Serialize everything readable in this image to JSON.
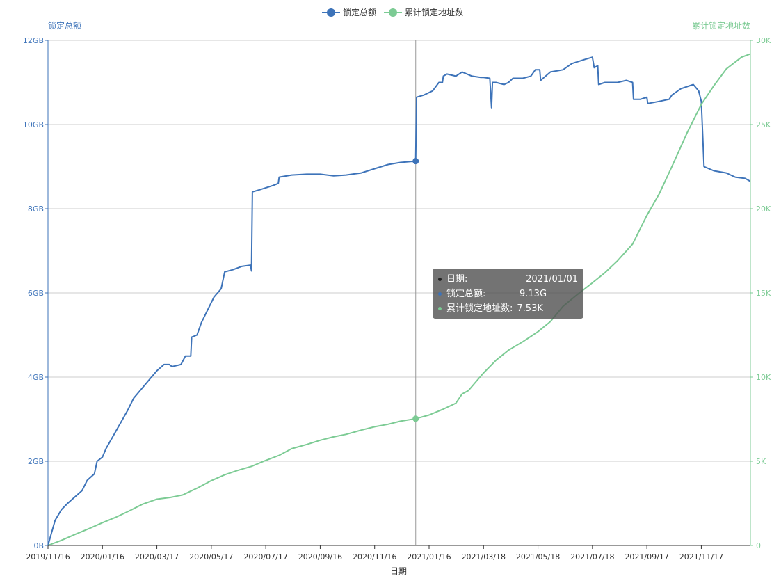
{
  "colors": {
    "series1": "#3d73b9",
    "series2": "#7ccb94",
    "grid": "#cccccc",
    "axis_left": "#3d73b9",
    "axis_right": "#7ccb94"
  },
  "legend": [
    {
      "name": "锁定总额",
      "color": "#3d73b9"
    },
    {
      "name": "累计锁定地址数",
      "color": "#7ccb94"
    }
  ],
  "tooltip": {
    "rows": [
      {
        "label": "日期:",
        "value": "2021/01/01",
        "dot_color": "#333333"
      },
      {
        "label": "锁定总额:",
        "value": "9.13G",
        "dot_color": "#3d73b9"
      },
      {
        "label": "累计锁定地址数:",
        "value": "7.53K",
        "dot_color": "#7ccb94"
      }
    ]
  },
  "chart_data": {
    "type": "line",
    "xlabel": "日期",
    "ylabel_left": "锁定总额",
    "ylabel_right": "累计锁定地址数",
    "x_ticks": [
      "2019/11/16",
      "2020/01/16",
      "2020/03/17",
      "2020/05/17",
      "2020/07/17",
      "2020/09/16",
      "2020/11/16",
      "2021/01/16",
      "2021/03/18",
      "2021/05/18",
      "2021/07/18",
      "2021/09/17",
      "2021/11/17"
    ],
    "x_range": [
      "2019/11/16",
      "2022/01/11"
    ],
    "y_left_ticks": [
      "0B",
      "2GB",
      "4GB",
      "6GB",
      "8GB",
      "10GB",
      "12GB"
    ],
    "y_left_range": [
      0,
      12
    ],
    "y_right_ticks": [
      "0",
      "5K",
      "10K",
      "15K",
      "20K",
      "25K",
      "30K"
    ],
    "y_right_range": [
      0,
      30000
    ],
    "grid": true,
    "legend_position": "top-center",
    "crosshair_date": "2021/01/01",
    "series": [
      {
        "name": "锁定总额",
        "axis": "left",
        "unit": "GB",
        "points": [
          [
            "2019/11/16",
            0.0
          ],
          [
            "2019/11/20",
            0.3
          ],
          [
            "2019/11/24",
            0.6
          ],
          [
            "2019/12/01",
            0.85
          ],
          [
            "2019/12/08",
            1.0
          ],
          [
            "2019/12/16",
            1.15
          ],
          [
            "2019/12/24",
            1.3
          ],
          [
            "2019/12/30",
            1.55
          ],
          [
            "2020/01/07",
            1.7
          ],
          [
            "2020/01/10",
            2.0
          ],
          [
            "2020/01/16",
            2.1
          ],
          [
            "2020/01/20",
            2.3
          ],
          [
            "2020/01/28",
            2.6
          ],
          [
            "2020/02/05",
            2.9
          ],
          [
            "2020/02/13",
            3.2
          ],
          [
            "2020/02/20",
            3.5
          ],
          [
            "2020/02/28",
            3.7
          ],
          [
            "2020/03/07",
            3.9
          ],
          [
            "2020/03/17",
            4.15
          ],
          [
            "2020/03/25",
            4.3
          ],
          [
            "2020/03/31",
            4.3
          ],
          [
            "2020/04/03",
            4.25
          ],
          [
            "2020/04/13",
            4.3
          ],
          [
            "2020/04/18",
            4.5
          ],
          [
            "2020/04/24",
            4.5
          ],
          [
            "2020/04/25",
            4.95
          ],
          [
            "2020/05/01",
            5.0
          ],
          [
            "2020/05/06",
            5.3
          ],
          [
            "2020/05/13",
            5.6
          ],
          [
            "2020/05/20",
            5.9
          ],
          [
            "2020/05/28",
            6.1
          ],
          [
            "2020/06/01",
            6.5
          ],
          [
            "2020/06/10",
            6.55
          ],
          [
            "2020/06/20",
            6.63
          ],
          [
            "2020/06/30",
            6.66
          ],
          [
            "2020/07/01",
            6.52
          ],
          [
            "2020/07/02",
            8.4
          ],
          [
            "2020/07/10",
            8.45
          ],
          [
            "2020/07/25",
            8.55
          ],
          [
            "2020/07/31",
            8.6
          ],
          [
            "2020/08/01",
            8.75
          ],
          [
            "2020/08/15",
            8.8
          ],
          [
            "2020/09/01",
            8.82
          ],
          [
            "2020/09/16",
            8.82
          ],
          [
            "2020/10/01",
            8.78
          ],
          [
            "2020/10/15",
            8.8
          ],
          [
            "2020/11/01",
            8.85
          ],
          [
            "2020/11/16",
            8.95
          ],
          [
            "2020/12/01",
            9.05
          ],
          [
            "2020/12/15",
            9.1
          ],
          [
            "2021/01/01",
            9.13
          ],
          [
            "2021/01/02",
            10.65
          ],
          [
            "2021/01/10",
            10.7
          ],
          [
            "2021/01/20",
            10.8
          ],
          [
            "2021/01/27",
            11.0
          ],
          [
            "2021/01/31",
            11.0
          ],
          [
            "2021/02/01",
            11.15
          ],
          [
            "2021/02/05",
            11.2
          ],
          [
            "2021/02/15",
            11.15
          ],
          [
            "2021/02/22",
            11.25
          ],
          [
            "2021/03/05",
            11.15
          ],
          [
            "2021/03/15",
            11.12
          ],
          [
            "2021/03/18",
            11.12
          ],
          [
            "2021/03/25",
            11.1
          ],
          [
            "2021/03/27",
            10.4
          ],
          [
            "2021/03/28",
            11.0
          ],
          [
            "2021/04/01",
            11.0
          ],
          [
            "2021/04/10",
            10.95
          ],
          [
            "2021/04/15",
            11.0
          ],
          [
            "2021/04/20",
            11.1
          ],
          [
            "2021/05/01",
            11.1
          ],
          [
            "2021/05/10",
            11.15
          ],
          [
            "2021/05/15",
            11.3
          ],
          [
            "2021/05/20",
            11.3
          ],
          [
            "2021/05/21",
            11.05
          ],
          [
            "2021/06/01",
            11.25
          ],
          [
            "2021/06/15",
            11.3
          ],
          [
            "2021/06/25",
            11.45
          ],
          [
            "2021/07/10",
            11.55
          ],
          [
            "2021/07/18",
            11.6
          ],
          [
            "2021/07/20",
            11.35
          ],
          [
            "2021/07/24",
            11.4
          ],
          [
            "2021/07/25",
            10.95
          ],
          [
            "2021/08/01",
            11.0
          ],
          [
            "2021/08/15",
            11.0
          ],
          [
            "2021/08/25",
            11.05
          ],
          [
            "2021/09/01",
            11.0
          ],
          [
            "2021/09/02",
            10.6
          ],
          [
            "2021/09/10",
            10.6
          ],
          [
            "2021/09/17",
            10.65
          ],
          [
            "2021/09/18",
            10.5
          ],
          [
            "2021/10/01",
            10.55
          ],
          [
            "2021/10/12",
            10.6
          ],
          [
            "2021/10/15",
            10.7
          ],
          [
            "2021/10/25",
            10.85
          ],
          [
            "2021/11/01",
            10.9
          ],
          [
            "2021/11/08",
            10.95
          ],
          [
            "2021/11/10",
            10.9
          ],
          [
            "2021/11/14",
            10.8
          ],
          [
            "2021/11/17",
            10.55
          ],
          [
            "2021/11/20",
            9.0
          ],
          [
            "2021/12/01",
            8.9
          ],
          [
            "2021/12/15",
            8.85
          ],
          [
            "2021/12/25",
            8.75
          ],
          [
            "2022/01/05",
            8.72
          ],
          [
            "2022/01/11",
            8.65
          ]
        ]
      },
      {
        "name": "累计锁定地址数",
        "axis": "right",
        "unit": "count",
        "points": [
          [
            "2019/11/16",
            0
          ],
          [
            "2019/12/01",
            300
          ],
          [
            "2019/12/16",
            650
          ],
          [
            "2020/01/01",
            1000
          ],
          [
            "2020/01/16",
            1350
          ],
          [
            "2020/02/01",
            1700
          ],
          [
            "2020/02/15",
            2050
          ],
          [
            "2020/03/01",
            2450
          ],
          [
            "2020/03/17",
            2750
          ],
          [
            "2020/04/01",
            2850
          ],
          [
            "2020/04/15",
            3000
          ],
          [
            "2020/05/01",
            3400
          ],
          [
            "2020/05/17",
            3850
          ],
          [
            "2020/06/01",
            4200
          ],
          [
            "2020/06/15",
            4450
          ],
          [
            "2020/07/01",
            4700
          ],
          [
            "2020/07/17",
            5050
          ],
          [
            "2020/08/01",
            5350
          ],
          [
            "2020/08/15",
            5750
          ],
          [
            "2020/09/01",
            6000
          ],
          [
            "2020/09/16",
            6250
          ],
          [
            "2020/10/01",
            6450
          ],
          [
            "2020/10/15",
            6600
          ],
          [
            "2020/11/01",
            6850
          ],
          [
            "2020/11/16",
            7050
          ],
          [
            "2020/12/01",
            7200
          ],
          [
            "2020/12/15",
            7380
          ],
          [
            "2021/01/01",
            7530
          ],
          [
            "2021/01/16",
            7750
          ],
          [
            "2021/02/01",
            8100
          ],
          [
            "2021/02/15",
            8450
          ],
          [
            "2021/02/22",
            9000
          ],
          [
            "2021/03/01",
            9200
          ],
          [
            "2021/03/18",
            10250
          ],
          [
            "2021/04/01",
            11000
          ],
          [
            "2021/04/15",
            11600
          ],
          [
            "2021/05/01",
            12100
          ],
          [
            "2021/05/18",
            12700
          ],
          [
            "2021/06/01",
            13300
          ],
          [
            "2021/06/15",
            14200
          ],
          [
            "2021/07/01",
            14900
          ],
          [
            "2021/07/18",
            15600
          ],
          [
            "2021/08/01",
            16200
          ],
          [
            "2021/08/15",
            16900
          ],
          [
            "2021/09/01",
            17900
          ],
          [
            "2021/09/17",
            19600
          ],
          [
            "2021/10/01",
            20900
          ],
          [
            "2021/10/15",
            22500
          ],
          [
            "2021/11/01",
            24500
          ],
          [
            "2021/11/17",
            26200
          ],
          [
            "2021/12/01",
            27300
          ],
          [
            "2021/12/15",
            28300
          ],
          [
            "2022/01/01",
            29000
          ],
          [
            "2022/01/11",
            29200
          ]
        ]
      }
    ]
  }
}
